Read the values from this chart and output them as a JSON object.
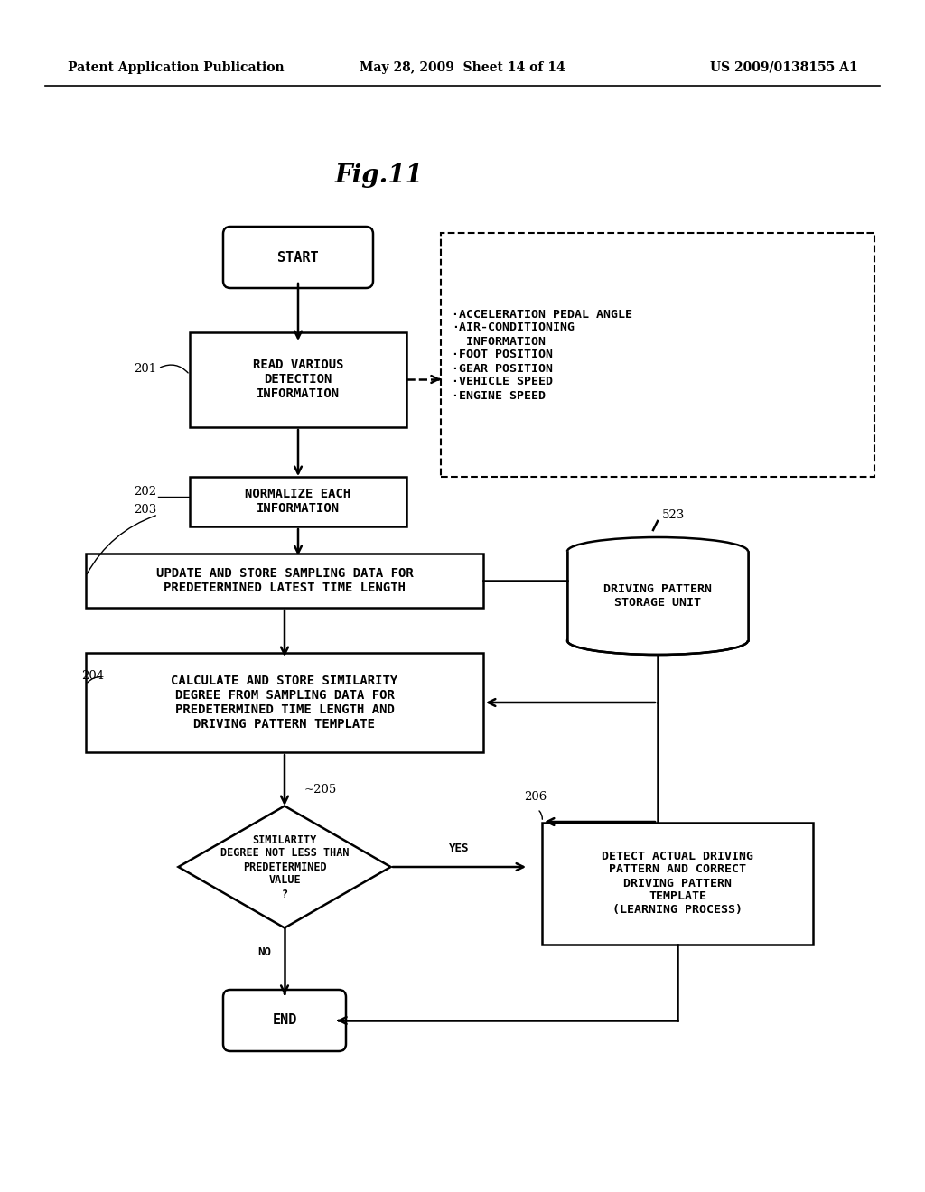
{
  "header_left": "Patent Application Publication",
  "header_mid": "May 28, 2009  Sheet 14 of 14",
  "header_right": "US 2009/0138155 A1",
  "title": "Fig.11",
  "bg_color": "#ffffff",
  "lw": 1.8,
  "fontsize_body": 9.5,
  "fontsize_header": 10,
  "fontsize_title": 20,
  "fontsize_label": 9.5
}
